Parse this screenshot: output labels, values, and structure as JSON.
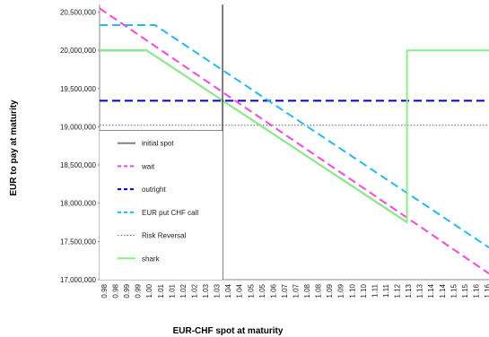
{
  "chart_data": {
    "type": "line",
    "title": "",
    "xlabel": "EUR-CHF spot at maturity",
    "ylabel": "EUR to pay at maturity",
    "ylim": [
      17000000,
      20600000
    ],
    "y_ticks": [
      "20,500,000",
      "20,000,000",
      "19,500,000",
      "19,000,000",
      "18,500,000",
      "18,000,000",
      "17,500,000",
      "17,000,000"
    ],
    "y_tick_values": [
      20500000,
      20000000,
      19500000,
      19000000,
      18500000,
      18000000,
      17500000,
      17000000
    ],
    "x_ticks": [
      "0.98",
      "0.98",
      "0.99",
      "0.99",
      "1.00",
      "1.01",
      "1.01",
      "1.02",
      "1.02",
      "1.03",
      "1.03",
      "1.04",
      "1.04",
      "1.05",
      "1.05",
      "1.06",
      "1.07",
      "1.07",
      "1.08",
      "1.08",
      "1.09",
      "1.09",
      "1.10",
      "1.10",
      "1.11",
      "1.11",
      "1.12",
      "1.13",
      "1.13",
      "1.14",
      "1.14",
      "1.15",
      "1.15",
      "1.16",
      "1.16"
    ],
    "xlim": [
      0.98,
      1.17
    ],
    "marker_line_x": 1.04,
    "marker_line_y": 18950000,
    "legend_position": "left",
    "series": [
      {
        "name": "initial spot",
        "color": "#808080",
        "style": "solid",
        "x": [
          0.98,
          1.003,
          1.13
        ],
        "y": [
          20000000,
          20000000,
          17750000
        ]
      },
      {
        "name": "wait",
        "color": "#ff44dd",
        "style": "dashed",
        "x": [
          0.98,
          1.17
        ],
        "y": [
          20550000,
          17080000
        ]
      },
      {
        "name": "outright",
        "color": "#0000cc",
        "style": "dashed",
        "x": [
          0.98,
          1.17
        ],
        "y": [
          19340000,
          19340000
        ]
      },
      {
        "name": "EUR put CHF call",
        "color": "#22bbee",
        "style": "dashed",
        "x": [
          0.98,
          1.007,
          1.17
        ],
        "y": [
          20330000,
          20330000,
          17420000
        ]
      },
      {
        "name": "Risk Reversal",
        "color": "#666666",
        "style": "dotted",
        "x": [
          0.98,
          1.17
        ],
        "y": [
          19020000,
          19020000
        ]
      },
      {
        "name": "shark",
        "color": "#88ee88",
        "style": "solid",
        "x": [
          0.98,
          1.003,
          1.13,
          1.13,
          1.17
        ],
        "y": [
          20000000,
          20000000,
          17750000,
          20000000,
          20000000
        ]
      }
    ]
  }
}
